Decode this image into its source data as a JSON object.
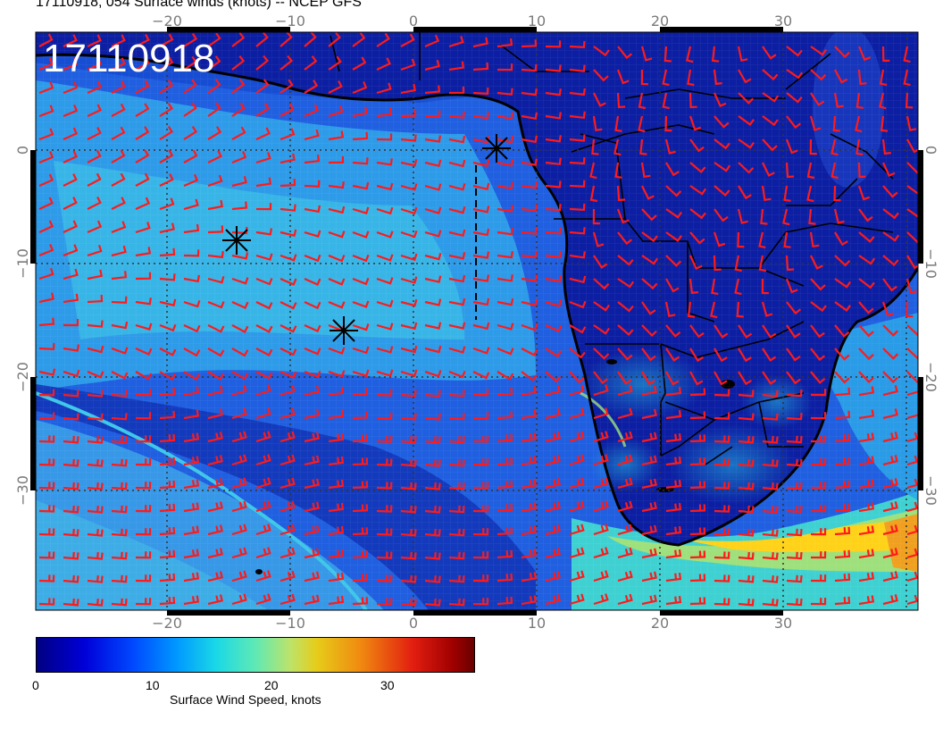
{
  "title": "17110918, 054 Surface winds (knots) -- NCEP GFS",
  "stamp": "17110918",
  "map": {
    "lon_ticks": [
      "−20",
      "−10",
      "0",
      "10",
      "20",
      "30"
    ],
    "lat_ticks": [
      "0",
      "−10",
      "−20",
      "−30"
    ],
    "colors": {
      "land_wind": "#0c1fa3",
      "ocean_wind": "#2b7ae8",
      "high_wind_band": "#ffd21a",
      "barb": "#ff1a1a",
      "coast": "#000000",
      "graticule": "#333333"
    },
    "markers": [
      "asterisk-marker",
      "asterisk-marker",
      "asterisk-marker"
    ]
  },
  "colorbar": {
    "ticks": [
      "0",
      "10",
      "20",
      "30"
    ],
    "title": "Surface Wind Speed, knots",
    "range_knots": [
      0,
      37
    ],
    "colors": [
      "#000082",
      "#0000d9",
      "#0048ff",
      "#0098ff",
      "#1ad8e6",
      "#5fe9b5",
      "#bde36a",
      "#e6cc1a",
      "#f08a10",
      "#e21e10",
      "#a00000",
      "#6a0000"
    ]
  }
}
